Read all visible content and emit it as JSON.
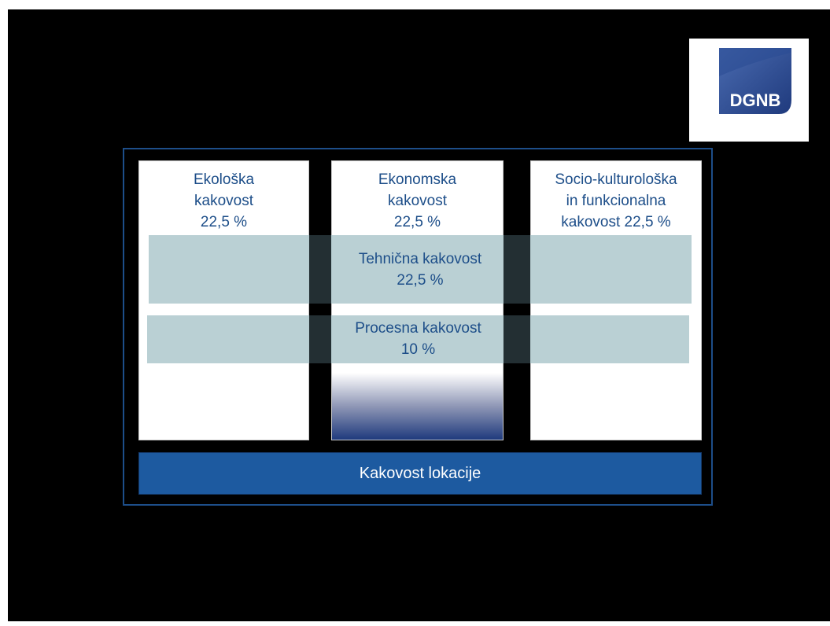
{
  "logo": {
    "text": "DGNB",
    "colors": {
      "dark": "#1f3a7d",
      "light": "#4a6bb0"
    }
  },
  "pillars": [
    {
      "label": "Ekološka\nkakovost\n22,5 %"
    },
    {
      "label": "Ekonomska\nkakovost\n22,5 %"
    },
    {
      "label": "Socio-kulturološka\nin funkcionalna\nkakovost 22,5 %"
    }
  ],
  "bands": [
    {
      "label": "Tehnična kakovost\n22,5 %"
    },
    {
      "label": "Procesna kakovost\n10 %"
    }
  ],
  "base": {
    "label": "Kakovost lokacije"
  },
  "colors": {
    "accent": "#1d4e89",
    "base_fill": "#1d5aa0",
    "band_fill": "#b3cbcf",
    "background": "#000000"
  }
}
